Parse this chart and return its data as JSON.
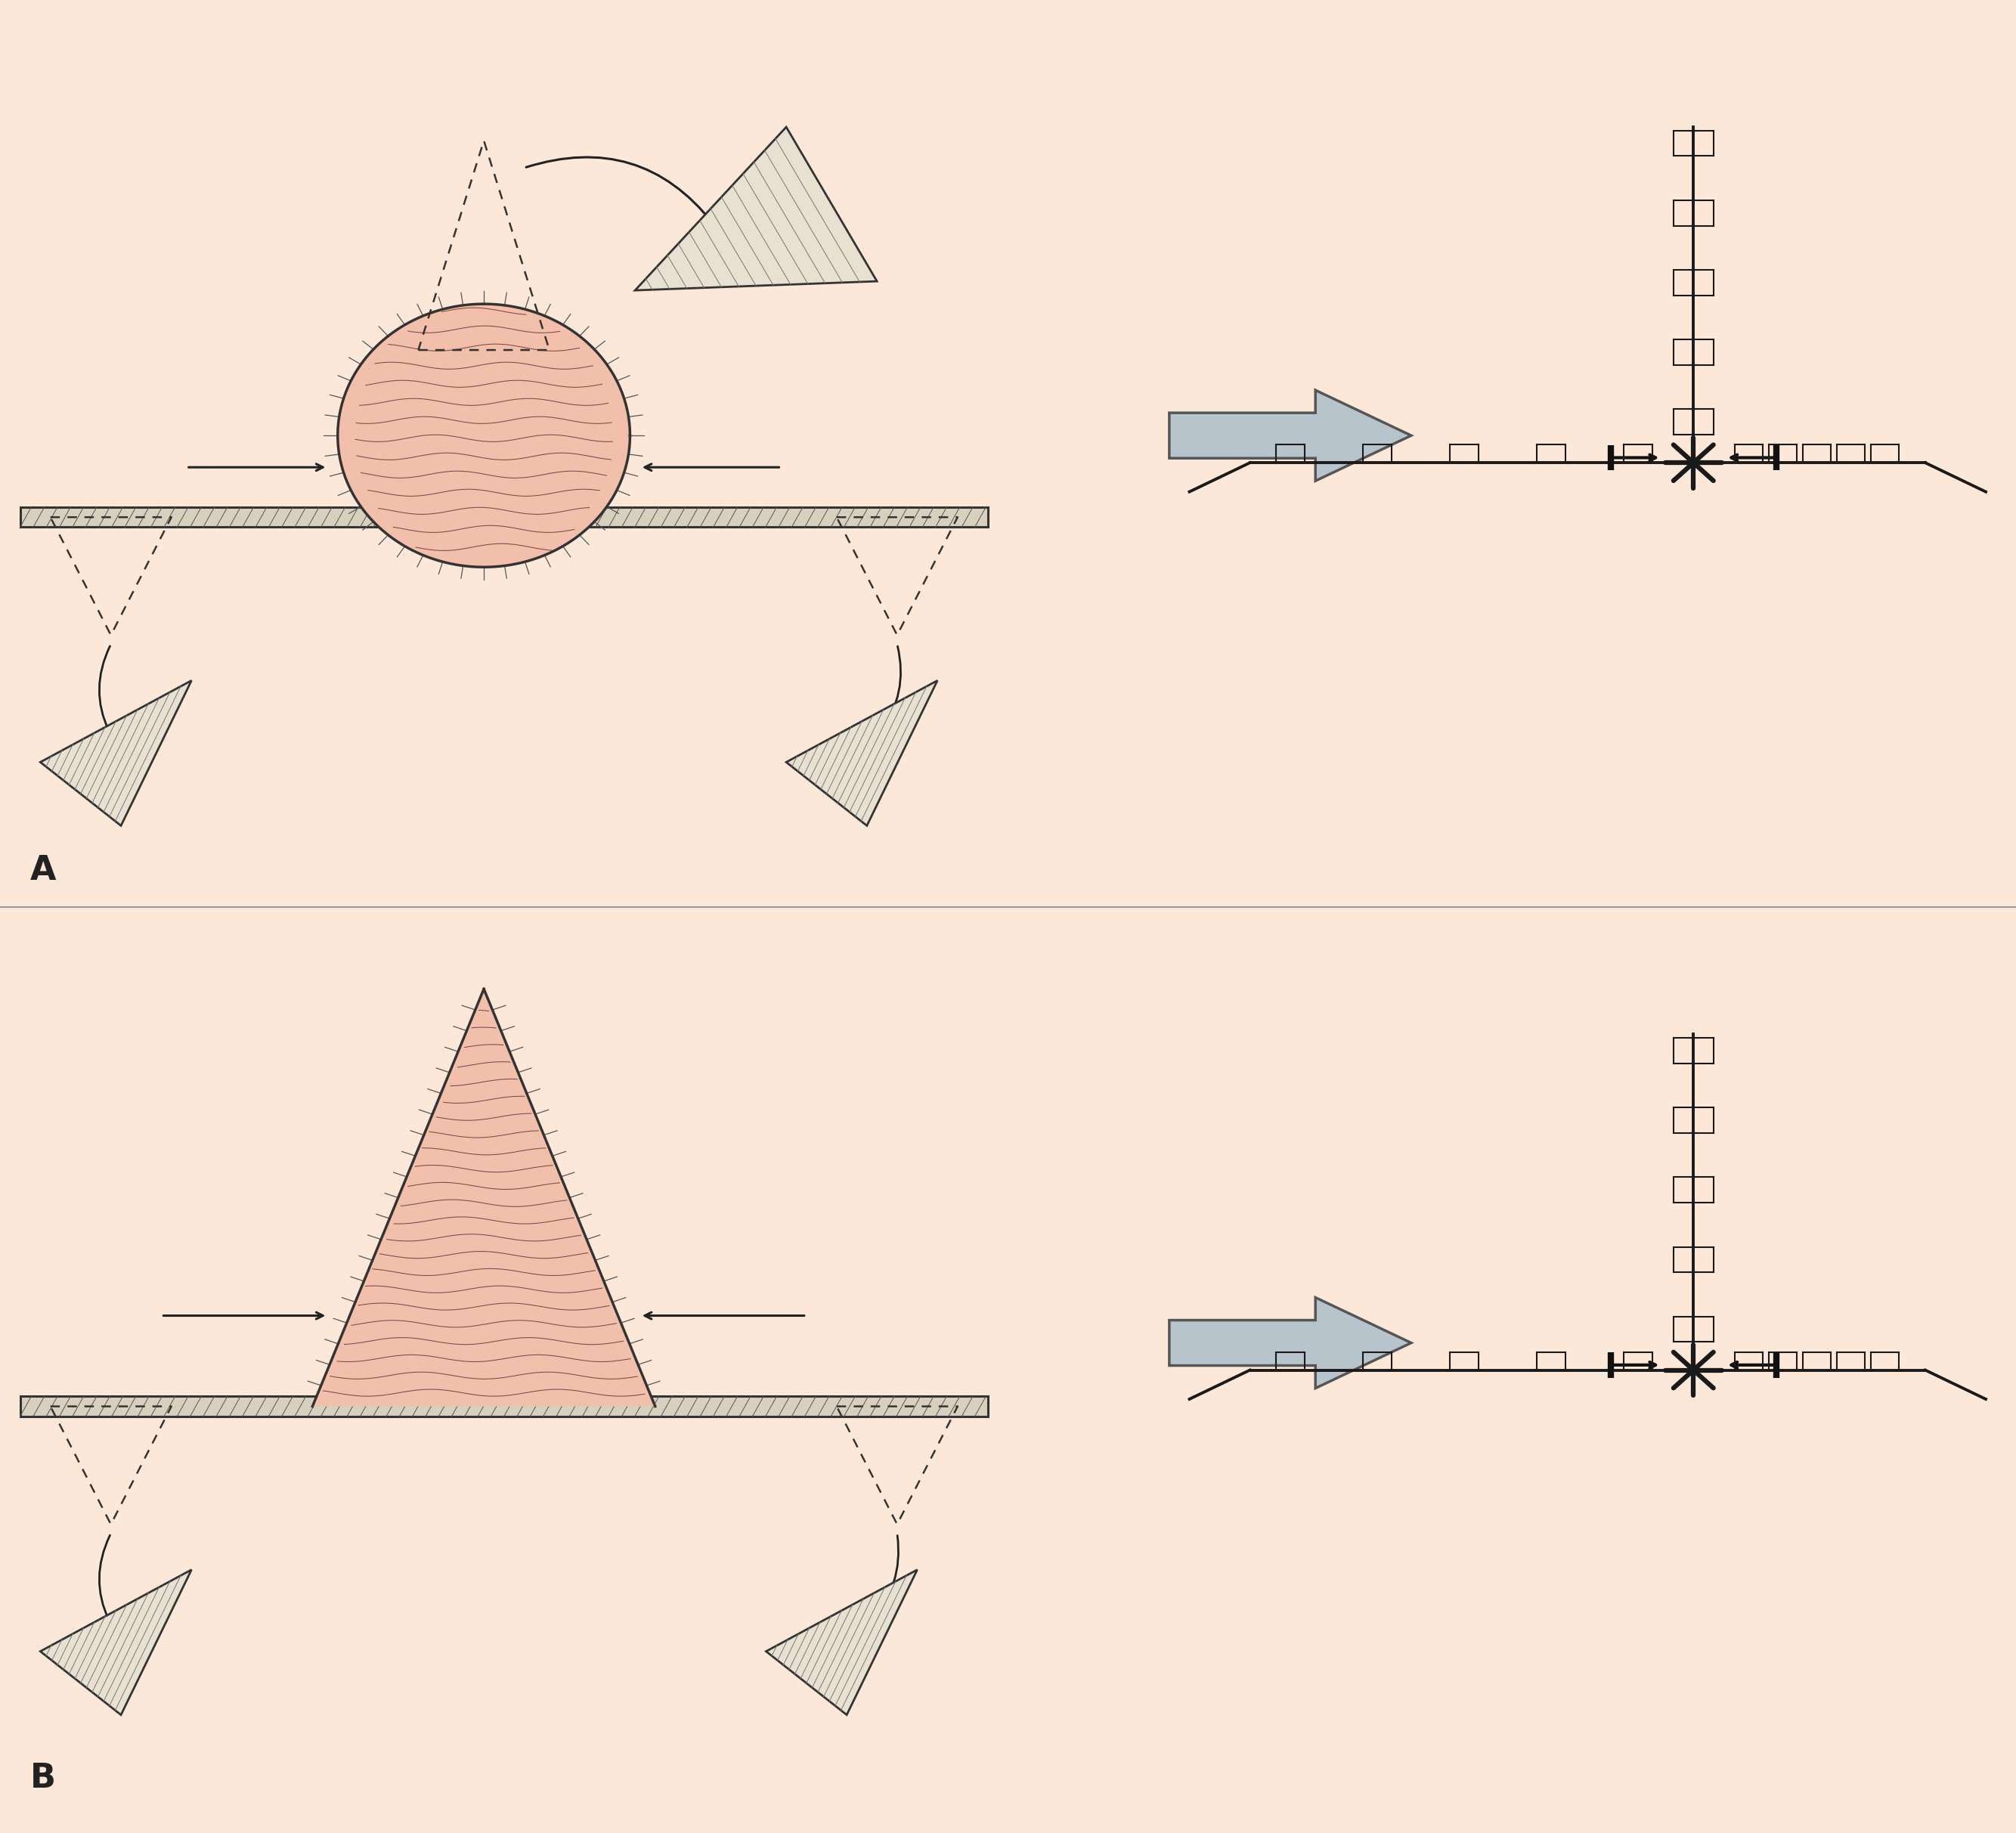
{
  "bg_color": "#fce8d8",
  "skin_fill": "#f2bfaa",
  "skin_edge": "#333333",
  "flap_fill_light": "#e8e0d0",
  "flap_fill_white": "#dedad0",
  "flap_edge": "#333333",
  "arrow_color": "#222222",
  "suture_color": "#1a1a1a",
  "big_arrow_fill": "#b8c4cc",
  "big_arrow_edge": "#555555",
  "bar_fill": "#d8d0be",
  "bar_hatch_color": "#555555",
  "wavy_color": "#7a4a4a",
  "label_A": "A",
  "label_B": "B",
  "label_fontsize": 32,
  "divider_color": "#999999"
}
